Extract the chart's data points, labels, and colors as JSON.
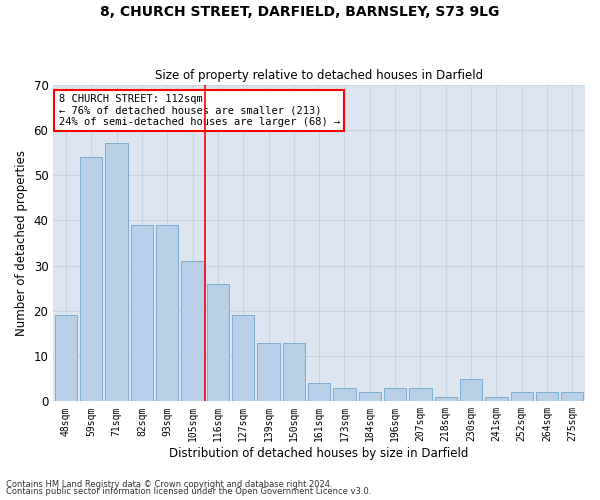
{
  "title": "8, CHURCH STREET, DARFIELD, BARNSLEY, S73 9LG",
  "subtitle": "Size of property relative to detached houses in Darfield",
  "xlabel": "Distribution of detached houses by size in Darfield",
  "ylabel": "Number of detached properties",
  "categories": [
    "48sqm",
    "59sqm",
    "71sqm",
    "82sqm",
    "93sqm",
    "105sqm",
    "116sqm",
    "127sqm",
    "139sqm",
    "150sqm",
    "161sqm",
    "173sqm",
    "184sqm",
    "196sqm",
    "207sqm",
    "218sqm",
    "230sqm",
    "241sqm",
    "252sqm",
    "264sqm",
    "275sqm"
  ],
  "values": [
    19,
    54,
    57,
    39,
    39,
    31,
    26,
    19,
    13,
    13,
    4,
    3,
    2,
    3,
    3,
    1,
    5,
    1,
    2,
    2,
    2
  ],
  "bar_color": "#b8cfe8",
  "bar_edgecolor": "#7aadd4",
  "bar_linewidth": 0.7,
  "grid_color": "#c8d4e4",
  "background_color": "#dde6f0",
  "vline_x_index": 6,
  "vline_color": "red",
  "vline_linewidth": 1.2,
  "annotation_box_text": "8 CHURCH STREET: 112sqm\n← 76% of detached houses are smaller (213)\n24% of semi-detached houses are larger (68) →",
  "ylim": [
    0,
    70
  ],
  "yticks": [
    0,
    10,
    20,
    30,
    40,
    50,
    60,
    70
  ],
  "footnote1": "Contains HM Land Registry data © Crown copyright and database right 2024.",
  "footnote2": "Contains public sector information licensed under the Open Government Licence v3.0."
}
